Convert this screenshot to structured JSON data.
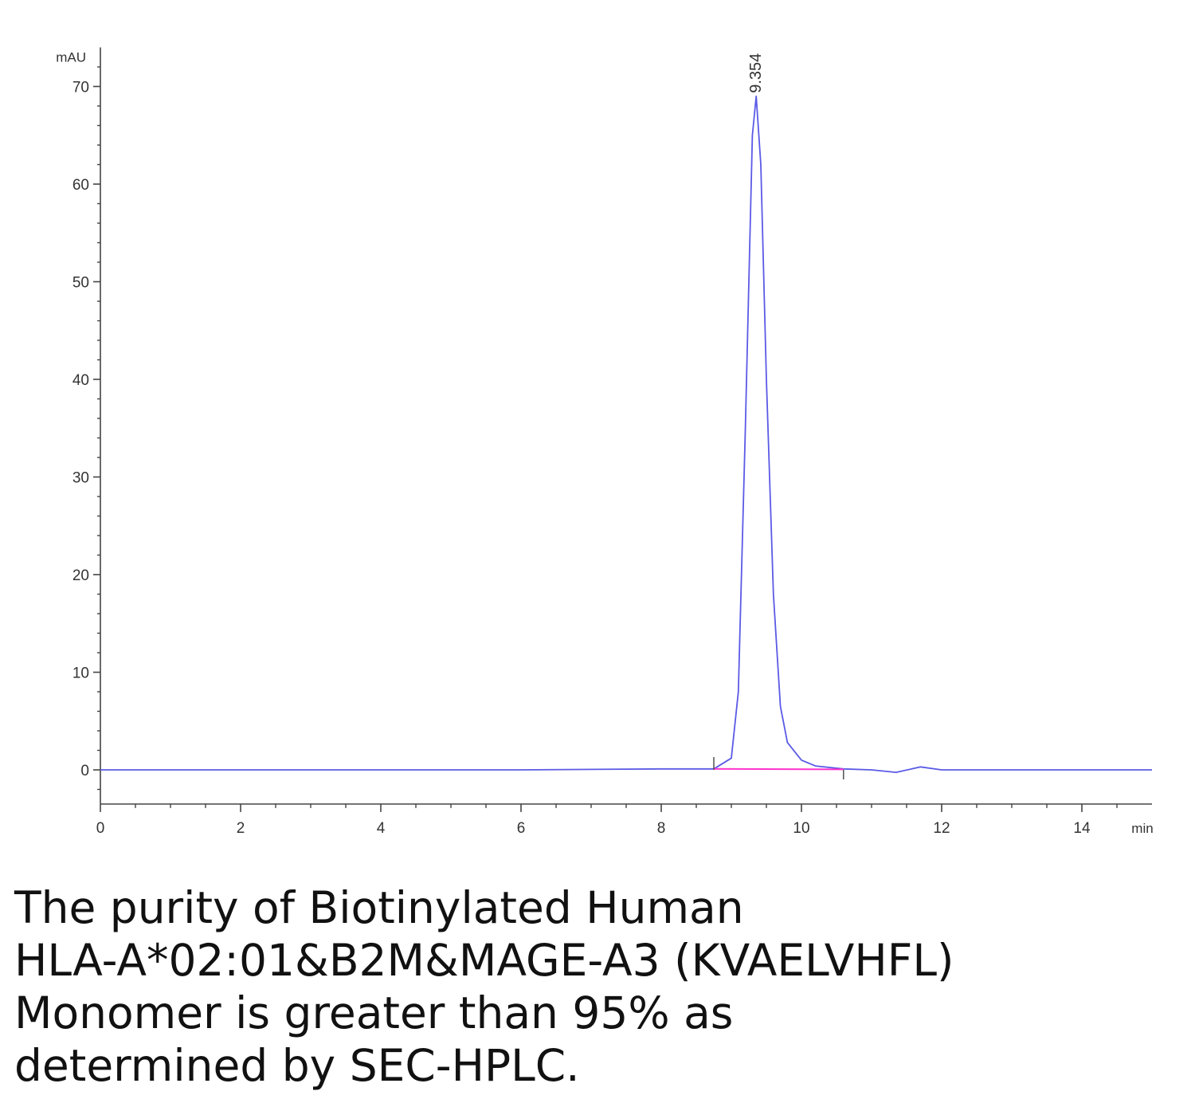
{
  "chart_data": {
    "type": "line",
    "y_unit": "mAU",
    "x_unit": "min",
    "xlim": [
      0,
      15
    ],
    "ylim": [
      -3.5,
      74
    ],
    "x_ticks": [
      0,
      2,
      4,
      6,
      8,
      10,
      12,
      14
    ],
    "y_ticks": [
      0,
      10,
      20,
      30,
      40,
      50,
      60,
      70
    ],
    "grid": false,
    "legend": "none",
    "series": [
      {
        "color": "#5a5ae6",
        "points": [
          [
            0,
            0
          ],
          [
            2,
            0
          ],
          [
            4,
            0
          ],
          [
            6,
            0
          ],
          [
            8,
            0.1
          ],
          [
            8.75,
            0.1
          ],
          [
            9.0,
            1.2
          ],
          [
            9.1,
            8
          ],
          [
            9.2,
            35
          ],
          [
            9.3,
            65
          ],
          [
            9.354,
            69
          ],
          [
            9.42,
            62
          ],
          [
            9.5,
            40
          ],
          [
            9.6,
            18
          ],
          [
            9.7,
            6.5
          ],
          [
            9.8,
            2.8
          ],
          [
            10.0,
            1.0
          ],
          [
            10.2,
            0.4
          ],
          [
            10.6,
            0.1
          ],
          [
            11.0,
            0
          ],
          [
            11.35,
            -0.25
          ],
          [
            11.7,
            0.3
          ],
          [
            12.0,
            0
          ],
          [
            14,
            0
          ],
          [
            15,
            0
          ]
        ]
      }
    ],
    "baseline_segment": {
      "color": "#ff33cc",
      "x": [
        8.75,
        10.6
      ],
      "y": [
        0.1,
        0.05
      ]
    },
    "peak_markers_x": [
      8.75,
      10.6
    ],
    "annotations": [
      {
        "text": "9.354",
        "x": 9.354,
        "y": 69
      }
    ]
  },
  "caption_lines": [
    "The purity of Biotinylated Human",
    "HLA-A*02:01&B2M&MAGE-A3 (KVAELVHFL)",
    "Monomer is greater than 95% as",
    "determined by SEC-HPLC."
  ],
  "colors": {
    "axis": "#444444",
    "trace": "#5a5ae6",
    "baseline": "#ff33cc"
  }
}
